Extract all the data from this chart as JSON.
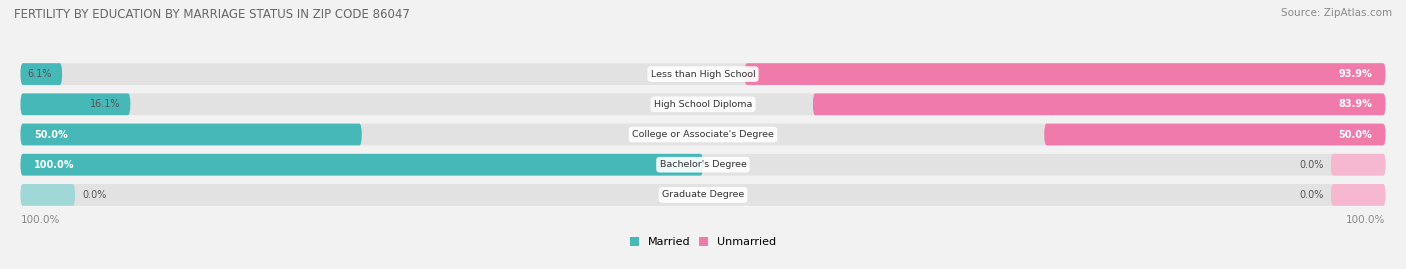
{
  "title": "FERTILITY BY EDUCATION BY MARRIAGE STATUS IN ZIP CODE 86047",
  "source": "Source: ZipAtlas.com",
  "categories": [
    "Less than High School",
    "High School Diploma",
    "College or Associate's Degree",
    "Bachelor's Degree",
    "Graduate Degree"
  ],
  "married": [
    6.1,
    16.1,
    50.0,
    100.0,
    0.0
  ],
  "unmarried": [
    93.9,
    83.9,
    50.0,
    0.0,
    0.0
  ],
  "married_color": "#47b8b8",
  "unmarried_color": "#f07baa",
  "unmarried_stub_color": "#f5b8d0",
  "married_stub_color": "#a0d8d8",
  "bg_color": "#f2f2f2",
  "bar_bg_color": "#e2e2e2",
  "figsize": [
    14.06,
    2.69
  ],
  "dpi": 100
}
